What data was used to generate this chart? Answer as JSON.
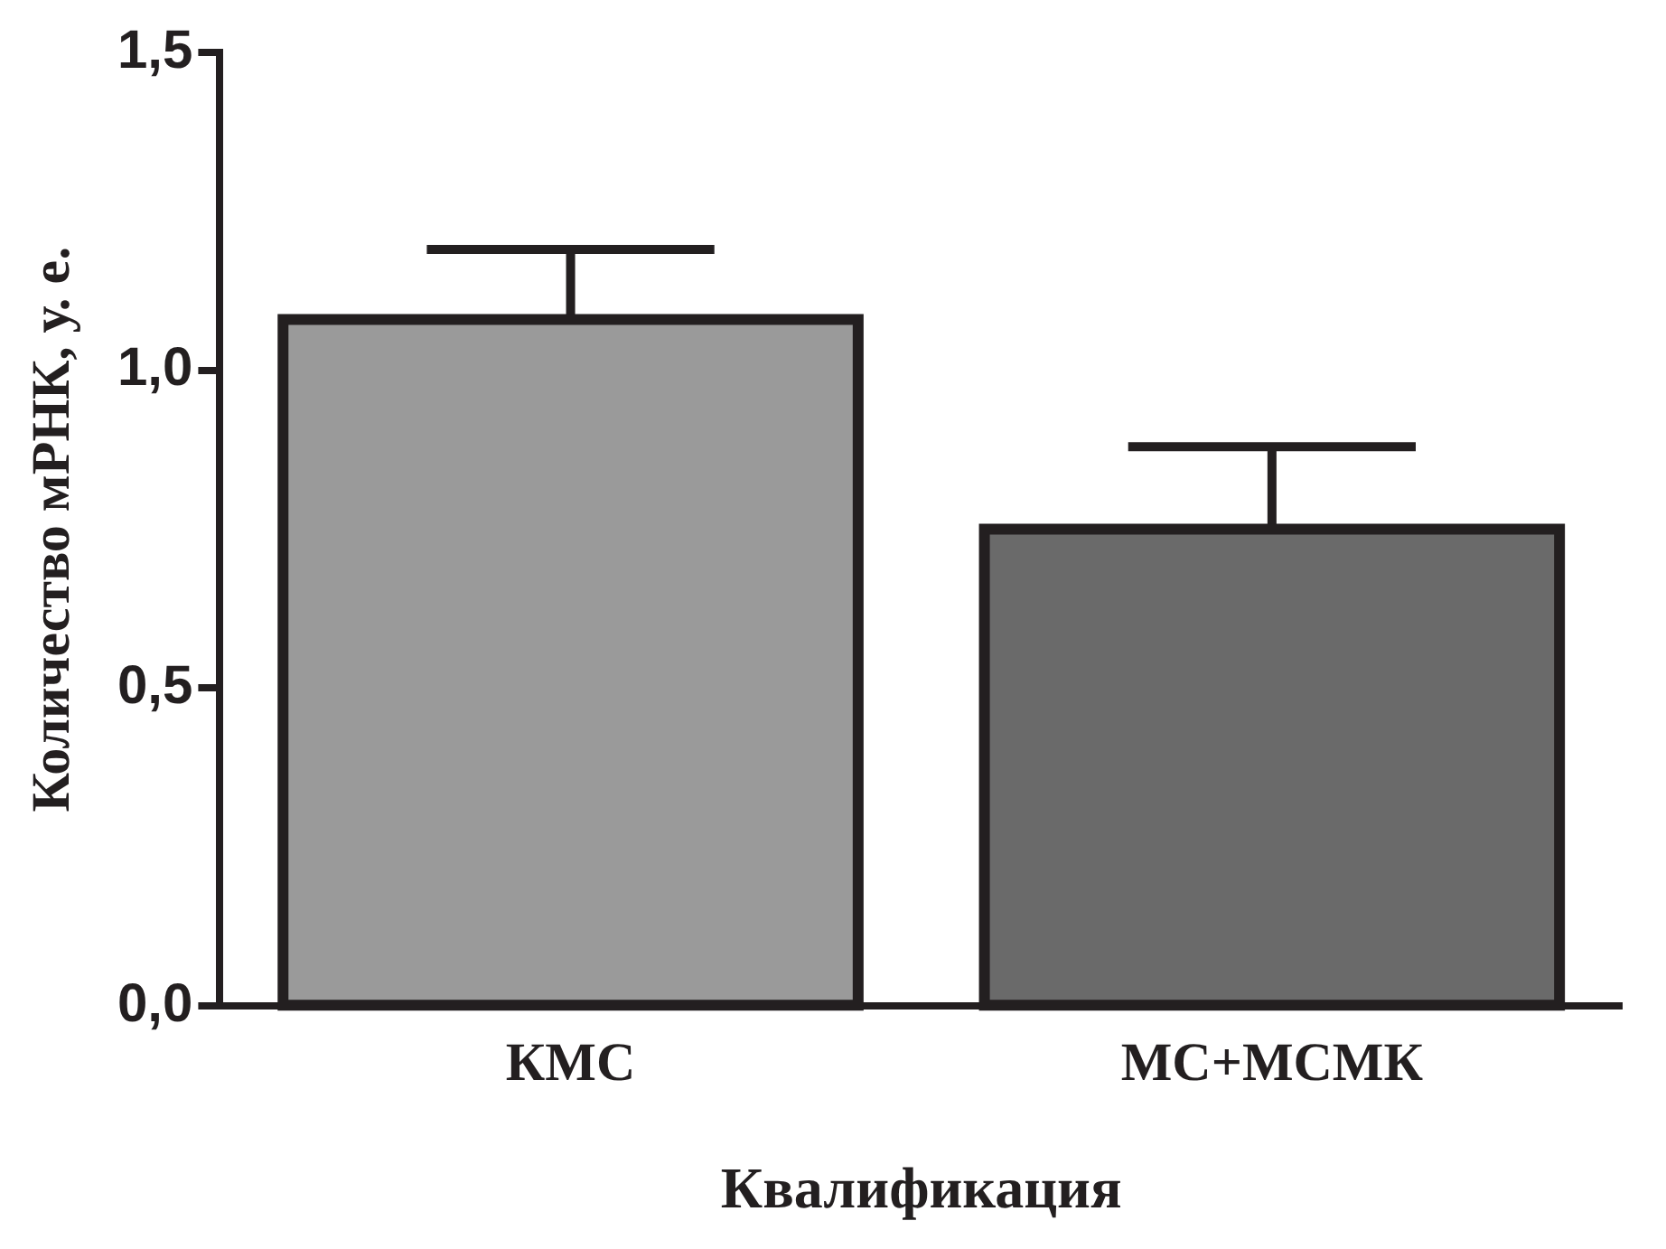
{
  "chart_data": {
    "type": "bar",
    "xlabel": "Квалификация",
    "ylabel": "Количество мРНК, у. е.",
    "categories": [
      "КМС",
      "МС+МСМК"
    ],
    "values": [
      1.08,
      0.75
    ],
    "colors": [
      "#9a9a9a",
      "#6a6a6a"
    ],
    "errors": [
      [
        1.08,
        1.19
      ],
      [
        0.75,
        0.88
      ]
    ],
    "ylim": [
      0,
      1.5
    ],
    "yticks": [
      {
        "value": 0,
        "label": "0,0"
      },
      {
        "value": 0.5,
        "label": "0,5"
      },
      {
        "value": 1,
        "label": "1,0"
      },
      {
        "value": 1.5,
        "label": "1,5"
      }
    ],
    "grid": false,
    "legend": false
  }
}
